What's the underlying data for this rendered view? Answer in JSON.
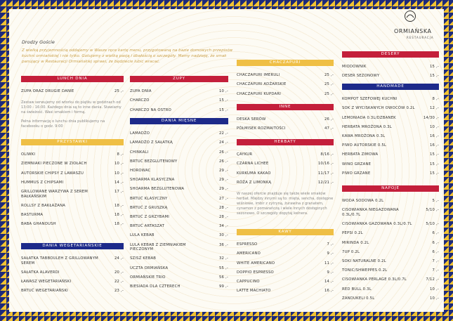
{
  "logo": {
    "name": "ORMIAŃSKA",
    "subtitle": "RESTAURACJA"
  },
  "greeting": "Drodzy Goście",
  "intro": "Z wielką przyjemnością oddajemy w Wasze ręce kartę menu, przygotowaną na bazie domowych przepisów kuchni ormiańskiej i nie tylko. Gotujemy z wielką pasją i dbałością o szczegóły. Mamy nadzieję, że smak panujący w Restauracji Ormiańskiej sprawi, że będziecie lubić wracać.",
  "sections": [
    {
      "title": "LUNCH DNIA",
      "items": [
        {
          "name": "ZUPA ORAZ DRUGIE DANIE",
          "price": "25 ,-"
        }
      ],
      "notes": [
        "Zestaw serwujemy od wtorku do piątku w godzinach od 13:00 - 16:00. Każdego dnia są to inne dania. Stawiamy na świeżość. Wasi smakiem i formą.",
        "Pełna informację o lunchu dnia publikujemy na facebooku o godz. 9:00"
      ]
    },
    {
      "title": "PRZYSTAWKI",
      "items": [
        {
          "name": "OLIWKI",
          "price": "8 ,-"
        },
        {
          "name": "ZIEMNIAKI PIECZONE W ZIOŁACH",
          "price": "10 ,-"
        },
        {
          "name": "AUTORSKIE CHIPSY Z LAWASZU",
          "price": "10 ,-"
        },
        {
          "name": "HUMMUS Z CHIPSAMI",
          "price": "14 ,-"
        },
        {
          "name": "GRILLOWANE WARZYWA Z SEREM BAŁKAŃSKIM",
          "price": "17 ,-"
        },
        {
          "name": "ROLLSY Z BAKŁAŻANA",
          "price": "18 ,-"
        },
        {
          "name": "BASTURMA",
          "price": "18 ,-"
        },
        {
          "name": "BABA GHANOUSH",
          "price": "18 ,-"
        }
      ]
    },
    {
      "title": "DANIA WEGETARIAŃSKIE",
      "items": [
        {
          "name": "SAŁATKA TABBOULEH Z GRILLOWANYM SEREM",
          "price": "24 ,-"
        },
        {
          "name": "SAŁATKA ALAVERDI",
          "price": "20 ,-"
        },
        {
          "name": "ŁAWASZ WEGETARIAŃSKI",
          "price": "22 ,-"
        },
        {
          "name": "BRTUĆ WEGETARIAŃSKI",
          "price": "23 ,-"
        }
      ]
    },
    {
      "title": "ZUPY",
      "items": [
        {
          "name": "ZUPA DNIA",
          "price": "10 ,-"
        },
        {
          "name": "CHARCZO",
          "price": "15 ,-"
        },
        {
          "name": "CHARCZO NA OSTRO",
          "price": "15 ,-"
        }
      ]
    },
    {
      "title": "DANIA MIĘSNE",
      "items": [
        {
          "name": "LAMADŻO",
          "price": "22 ,-"
        },
        {
          "name": "LAMADŻO Z SAŁATKĄ",
          "price": "24 ,-"
        },
        {
          "name": "CHINKALI",
          "price": "26 ,-"
        },
        {
          "name": "BRTUĆ BEZGLUTENOWY",
          "price": "26 ,-"
        },
        {
          "name": "HOROWAC",
          "price": "29 ,-"
        },
        {
          "name": "SHOARMA KLASYCZNA",
          "price": "29 ,-"
        },
        {
          "name": "SHOARMA BEZGLUTENOWA",
          "price": "29 ,-"
        },
        {
          "name": "BRTUĆ KLASYCZNY",
          "price": "27 ,-"
        },
        {
          "name": "BRTUĆ Z GRUSZKĄ",
          "price": "28 ,-"
        },
        {
          "name": "BRTUĆ Z GRZYBAMI",
          "price": "28 ,-"
        },
        {
          "name": "BRTUĆ ARTASZAT",
          "price": "34 ,-"
        },
        {
          "name": "LULA KEBAB",
          "price": "30 ,-"
        },
        {
          "name": "LULA KEBAB Z ZIEMNIAKIEM PIECZONYM",
          "price": "36 ,-"
        },
        {
          "name": "SZISZ KEBAB",
          "price": "32 ,-"
        },
        {
          "name": "UCZTA ORMIAŃSKA",
          "price": "55 ,-"
        },
        {
          "name": "ORMIAŃSKIE TRIO",
          "price": "56 ,-"
        },
        {
          "name": "BIESIADA DLA CZTERECH",
          "price": "99 ,-"
        }
      ]
    },
    {
      "title": "CHACZAPURI",
      "items": [
        {
          "name": "CHACZAPURI IMERULI",
          "price": "25 ,-"
        },
        {
          "name": "CHACZAPURI ADŻARSKIE",
          "price": "25 ,-"
        },
        {
          "name": "CHACZAPURI KUPDARI",
          "price": "25 ,-"
        }
      ]
    },
    {
      "title": "INNE",
      "items": [
        {
          "name": "DESKA SERÓW",
          "price": "26 ,-"
        },
        {
          "name": "PÓŁMISEK ROZMAITOŚCI",
          "price": "47 ,-"
        }
      ]
    },
    {
      "title": "HERBATY",
      "items": [
        {
          "name": "ÇAYKUR",
          "price": "8/16 ,-"
        },
        {
          "name": "CZARNA LICHEE",
          "price": "10/16 ,-"
        },
        {
          "name": "KURKUMA KAKAO",
          "price": "11/17 ,-"
        },
        {
          "name": "RÓŻA Z LIMONKĄ",
          "price": "12/21 ,-"
        }
      ],
      "notes": [
        "W naszej ofercie znajduje się także wiele smaków herbat. Między innymi są to: mięta, sencha, dostępne wiśniowe, imbir z cytryną, żurawina z granatem, cynamon z pomarańczą i wiele innych dostępnych sezonowo. O szczegóły dopytaj kelnera."
      ]
    },
    {
      "title": "KAWY",
      "items": [
        {
          "name": "ESPRESSO",
          "price": "7 ,-"
        },
        {
          "name": "AMERICANO",
          "price": "9 ,-"
        },
        {
          "name": "WHITE AMERICANO",
          "price": "11 ,-"
        },
        {
          "name": "DOPPIO ESPRESSO",
          "price": "9 ,-"
        },
        {
          "name": "CAPPUCINO",
          "price": "14 ,-"
        },
        {
          "name": "LATTE MACHIATO",
          "price": "16 ,-"
        }
      ]
    },
    {
      "title": "DESERY",
      "items": [
        {
          "name": "MIODOWNIK",
          "price": "15 ,-"
        },
        {
          "name": "DESER SEZONOWY",
          "price": "15 ,-"
        }
      ]
    },
    {
      "title": "HANDMADE",
      "items": [
        {
          "name": "KOMPOT SZEFOWEJ KUCHNI",
          "price": "8 ,-"
        },
        {
          "name": "SOK Z WYCISKANYCH OWOCÓW 0.2L",
          "price": "12 ,-"
        },
        {
          "name": "LEMONIADA 0.3L/DZBANEK",
          "price": "14/30 ,-"
        },
        {
          "name": "HERBATA MROŻONA 0.3L",
          "price": "10 ,-"
        },
        {
          "name": "KAWA MROŻONA 0.3L",
          "price": "16 ,-"
        },
        {
          "name": "PIWO AUTORSKIE 0.5L",
          "price": "16 ,-"
        },
        {
          "name": "HERBATA ZIMOWA",
          "price": "15 ,-"
        },
        {
          "name": "WINO GRZANE",
          "price": "15 ,-"
        },
        {
          "name": "PIWO GRZANE",
          "price": "15 ,-"
        }
      ]
    },
    {
      "title": "NAPOJE",
      "items": [
        {
          "name": "WODA SODOWA 0.2L",
          "price": "5 ,-"
        },
        {
          "name": "CISOWIANKA NIEGAZOWANA 0.3L/0.7L",
          "price": "5/10 ,-"
        },
        {
          "name": "CISOWIANKA GAZOWANA 0.3L/0.7L",
          "price": "5/10 ,-"
        },
        {
          "name": "PEPSI 0.2L",
          "price": "6 ,-"
        },
        {
          "name": "MIRINDA 0.2L",
          "price": "6 ,-"
        },
        {
          "name": "7UP 0.2L",
          "price": "6 ,-"
        },
        {
          "name": "SOKI NATURALNE 0.2L",
          "price": "7 ,-"
        },
        {
          "name": "TONIC/SHWEPPES 0.2L",
          "price": "7 ,-"
        },
        {
          "name": "CISOWIANKA PERLAGE 0.3L/0.7L",
          "price": "7/12 ,-"
        },
        {
          "name": "RED BULL 0.3L",
          "price": "10 ,-"
        },
        {
          "name": "ZANDUKELI 0.5L",
          "price": "10 ,-"
        }
      ]
    }
  ]
}
